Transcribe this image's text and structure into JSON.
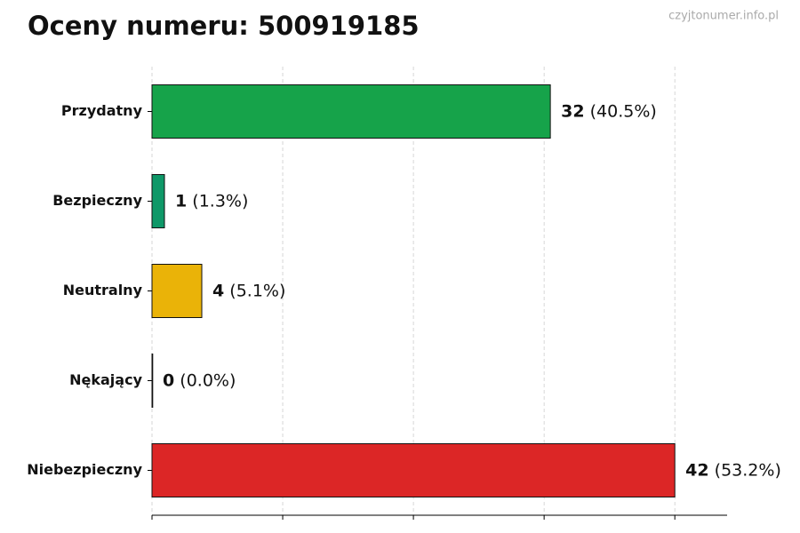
{
  "chart_data": {
    "type": "hbar",
    "title": "Oceny numeru: 500919185",
    "watermark": "czyjtonumer.info.pl",
    "categories": [
      "Przydatny",
      "Bezpieczny",
      "Neutralny",
      "Nękający",
      "Niebezpieczny"
    ],
    "values": [
      32,
      1,
      4,
      0,
      42
    ],
    "shares": [
      40.5,
      1.3,
      5.1,
      0.0,
      53.2
    ],
    "share_labels": [
      "(40.5%)",
      "(1.3%)",
      "(5.1%)",
      "(0.0%)",
      "(53.2%)"
    ],
    "colors": [
      "#16a34a",
      "#0e9868",
      "#eab308",
      "#9ca3af",
      "#dc2626"
    ],
    "xlim": [
      0,
      46.2
    ],
    "xticks": [
      0,
      10.5,
      21,
      31.5,
      42
    ],
    "grid": true
  }
}
